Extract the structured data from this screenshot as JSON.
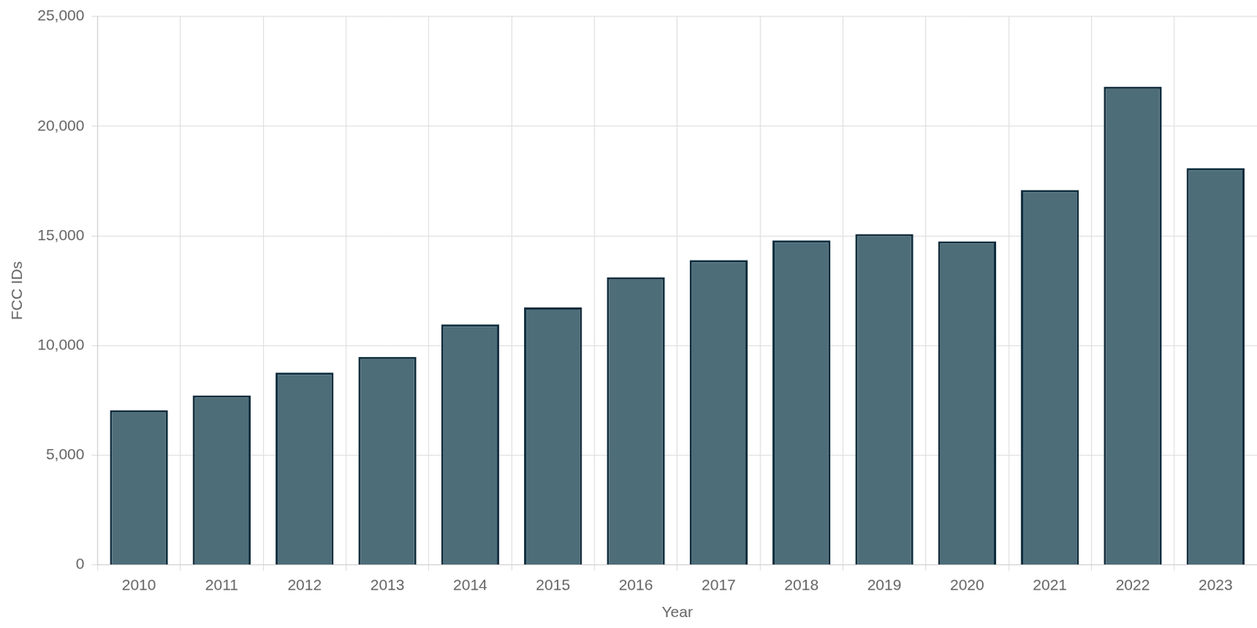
{
  "chart_data": {
    "type": "bar",
    "categories": [
      "2010",
      "2011",
      "2012",
      "2013",
      "2014",
      "2015",
      "2016",
      "2017",
      "2018",
      "2019",
      "2020",
      "2021",
      "2022",
      "2023"
    ],
    "values": [
      7050,
      7730,
      8770,
      9480,
      10960,
      11740,
      13110,
      13890,
      14790,
      15080,
      14750,
      17090,
      21800,
      18090
    ],
    "color": "#4d6d79",
    "x_label": "Year",
    "y_label": "FCC IDs",
    "ylim": [
      0,
      25000
    ],
    "yticks": [
      0,
      {
        "value": 5000,
        "label": "5,000"
      },
      {
        "value": 10000,
        "label": "10,000"
      },
      {
        "value": 15000,
        "label": "15,000"
      },
      {
        "value": 20000,
        "label": "20,000"
      },
      {
        "value": 25000,
        "label": "25,000"
      }
    ],
    "grid": true
  }
}
